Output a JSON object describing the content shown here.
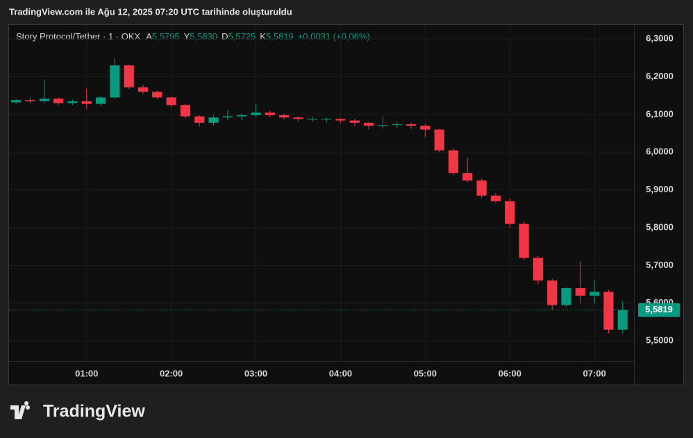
{
  "caption": "TradingView.com ile Ağu 12, 2025 07:20 UTC tarihinde oluşturuldu",
  "logo": "TradingView",
  "chart_data": {
    "type": "candlestick",
    "symbol": "Story Protocol/Tether · 1 · OKX",
    "ohlc_legend": [
      {
        "key": "A",
        "value": "5,5795"
      },
      {
        "key": "Y",
        "value": "5,5830"
      },
      {
        "key": "D",
        "value": "5,5725"
      },
      {
        "key": "K",
        "value": "5,5819"
      }
    ],
    "change": "+0,0031 (+0,06%)",
    "up_color": "#089981",
    "down_color": "#f23645",
    "x": [
      "00:10",
      "00:20",
      "00:30",
      "00:40",
      "00:50",
      "01:00",
      "01:10",
      "01:20",
      "01:30",
      "01:40",
      "01:50",
      "02:00",
      "02:10",
      "02:20",
      "02:30",
      "02:40",
      "02:50",
      "03:00",
      "03:10",
      "03:20",
      "03:30",
      "03:40",
      "03:50",
      "04:00",
      "04:10",
      "04:20",
      "04:30",
      "04:40",
      "04:50",
      "05:00",
      "05:10",
      "05:20",
      "05:30",
      "05:40",
      "05:50",
      "06:00",
      "06:10",
      "06:20",
      "06:30",
      "06:40",
      "06:50",
      "07:00",
      "07:10",
      "07:20"
    ],
    "open": [
      6.132,
      6.138,
      6.135,
      6.142,
      6.13,
      6.135,
      6.128,
      6.145,
      6.23,
      6.172,
      6.16,
      6.145,
      6.125,
      6.095,
      6.078,
      6.092,
      6.095,
      6.098,
      6.105,
      6.098,
      6.092,
      6.088,
      6.088,
      6.088,
      6.084,
      6.078,
      6.07,
      6.072,
      6.074,
      6.07,
      6.06,
      6.005,
      5.945,
      5.925,
      5.885,
      5.87,
      5.81,
      5.72,
      5.66,
      5.595,
      5.64,
      5.62,
      5.63,
      5.53
    ],
    "high": [
      6.142,
      6.145,
      6.192,
      6.145,
      6.14,
      6.168,
      6.148,
      6.25,
      6.232,
      6.178,
      6.163,
      6.148,
      6.128,
      6.098,
      6.098,
      6.112,
      6.102,
      6.128,
      6.11,
      6.102,
      6.095,
      6.094,
      6.092,
      6.09,
      6.088,
      6.08,
      6.095,
      6.08,
      6.078,
      6.075,
      6.062,
      6.01,
      5.985,
      5.93,
      5.892,
      5.878,
      5.815,
      5.725,
      5.665,
      5.642,
      5.712,
      5.66,
      5.635,
      5.605
    ],
    "low": [
      6.128,
      6.13,
      6.13,
      6.125,
      6.125,
      6.115,
      6.122,
      6.14,
      6.168,
      6.155,
      6.14,
      6.12,
      6.09,
      6.068,
      6.07,
      6.085,
      6.085,
      6.092,
      6.092,
      6.086,
      6.082,
      6.08,
      6.078,
      6.078,
      6.07,
      6.06,
      6.062,
      6.064,
      6.062,
      6.04,
      6.0,
      5.94,
      5.92,
      5.878,
      5.865,
      5.8,
      5.715,
      5.65,
      5.582,
      5.59,
      5.6,
      5.6,
      5.52,
      5.52
    ],
    "close": [
      6.138,
      6.135,
      6.142,
      6.13,
      6.135,
      6.128,
      6.145,
      6.23,
      6.172,
      6.16,
      6.145,
      6.125,
      6.095,
      6.078,
      6.092,
      6.095,
      6.098,
      6.105,
      6.098,
      6.092,
      6.088,
      6.088,
      6.088,
      6.084,
      6.078,
      6.07,
      6.072,
      6.074,
      6.07,
      6.06,
      6.005,
      5.945,
      5.925,
      5.885,
      5.87,
      5.81,
      5.72,
      5.66,
      5.595,
      5.64,
      5.62,
      5.63,
      5.53,
      5.582
    ],
    "last_price": {
      "value": 5.5819,
      "label": "5,5819"
    },
    "xlim": [
      "00:05",
      "07:28"
    ],
    "xticks": [
      "01:00",
      "02:00",
      "03:00",
      "04:00",
      "05:00",
      "06:00",
      "07:00"
    ],
    "ylim": [
      5.447,
      6.337
    ],
    "yticks": [
      {
        "value": 5.5,
        "label": "5,5000"
      },
      {
        "value": 5.6,
        "label": "5,6000"
      },
      {
        "value": 5.7,
        "label": "5,7000"
      },
      {
        "value": 5.8,
        "label": "5,8000"
      },
      {
        "value": 5.9,
        "label": "5,9000"
      },
      {
        "value": 6.0,
        "label": "6,0000"
      },
      {
        "value": 6.1,
        "label": "6,1000"
      },
      {
        "value": 6.2,
        "label": "6,2000"
      },
      {
        "value": 6.3,
        "label": "6,3000"
      }
    ]
  }
}
